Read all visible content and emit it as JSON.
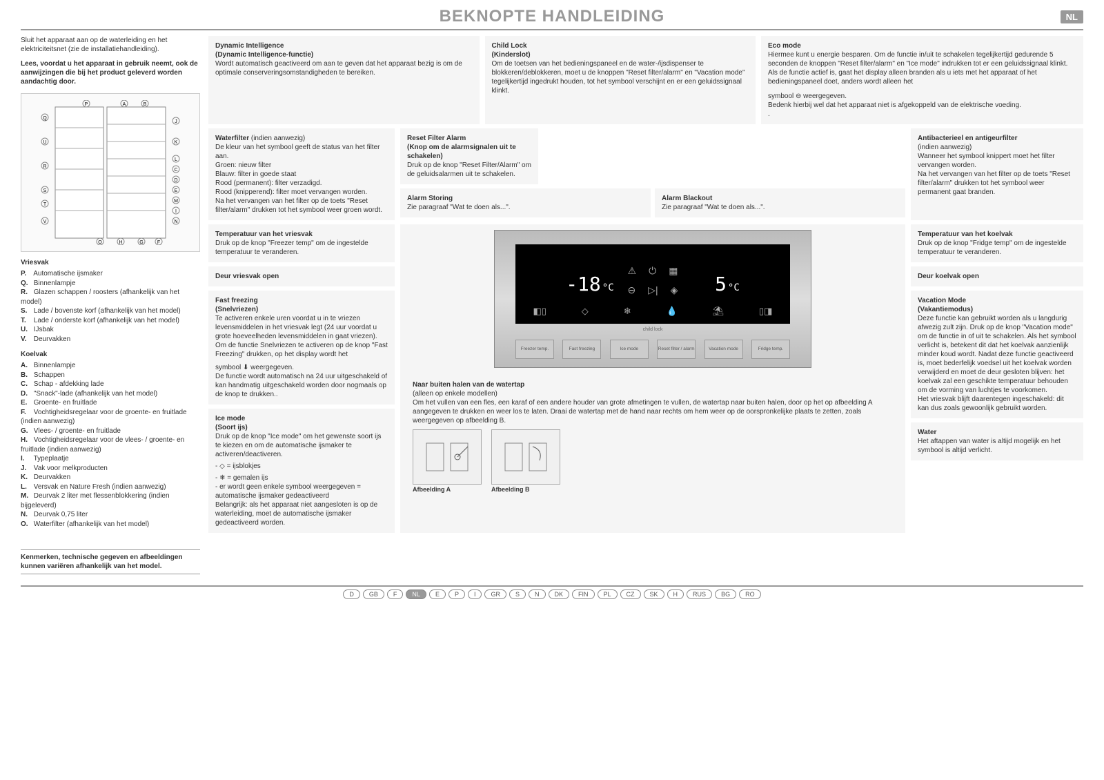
{
  "header": {
    "title": "BEKNOPTE HANDLEIDING",
    "lang": "NL"
  },
  "intro": {
    "p1": "Sluit het apparaat aan op de waterleiding en het elektriciteitsnet (zie de installatiehandleiding).",
    "p2": "Lees, voordat u het apparaat in gebruik neemt, ook de aanwijzingen die bij het product geleverd worden aandachtig door."
  },
  "legend": {
    "vriesvak_title": "Vriesvak",
    "vriesvak": [
      {
        "l": "P.",
        "t": "Automatische ijsmaker"
      },
      {
        "l": "Q.",
        "t": "Binnenlampje"
      },
      {
        "l": "R.",
        "t": "Glazen schappen / roosters (afhankelijk van het model)"
      },
      {
        "l": "S.",
        "t": "Lade / bovenste korf (afhankelijk van het model)"
      },
      {
        "l": "T.",
        "t": "Lade / onderste korf (afhankelijk van het model)"
      },
      {
        "l": "U.",
        "t": "IJsbak"
      },
      {
        "l": "V.",
        "t": "Deurvakken"
      }
    ],
    "koelvak_title": "Koelvak",
    "koelvak": [
      {
        "l": "A.",
        "t": "Binnenlampje"
      },
      {
        "l": "B.",
        "t": "Schappen"
      },
      {
        "l": "C.",
        "t": "Schap - afdekking lade"
      },
      {
        "l": "D.",
        "t": "\"Snack\"-lade (afhankelijk van het model)"
      },
      {
        "l": "E.",
        "t": "Groente- en fruitlade"
      },
      {
        "l": "F.",
        "t": "Vochtigheidsregelaar voor de groente- en fruitlade (indien aanwezig)"
      },
      {
        "l": "G.",
        "t": "Vlees- / groente- en fruitlade"
      },
      {
        "l": "H.",
        "t": "Vochtigheidsregelaar voor de vlees- / groente- en fruitlade (indien aanwezig)"
      },
      {
        "l": "I.",
        "t": "Typeplaatje"
      },
      {
        "l": "J.",
        "t": "Vak voor melkproducten"
      },
      {
        "l": "K.",
        "t": "Deurvakken"
      },
      {
        "l": "L.",
        "t": "Versvak en Nature Fresh (indien aanwezig)"
      },
      {
        "l": "M.",
        "t": "Deurvak 2 liter met flessenblokkering (indien bijgeleverd)"
      },
      {
        "l": "N.",
        "t": "Deurvak 0,75 liter"
      },
      {
        "l": "O.",
        "t": "Waterfilter (afhankelijk van het model)"
      }
    ],
    "bottom_note": "Kenmerken, technische gegeven en afbeeldingen kunnen variëren afhankelijk van het model."
  },
  "boxes": {
    "dynamic": {
      "t": "Dynamic Intelligence",
      "s": "(Dynamic Intelligence-functie)",
      "b": "Wordt automatisch geactiveerd om aan te geven dat het apparaat bezig is om de optimale conserveringsomstandigheden te bereiken."
    },
    "childlock": {
      "t": "Child Lock",
      "s": "(Kinderslot)",
      "b": "Om de toetsen van het bedieningspaneel en de water-/ijsdispenser te blokkeren/deblokkeren, moet u de knoppen \"Reset filter/alarm\" en \"Vacation mode\" tegelijkertijd ingedrukt houden, tot het symbool verschijnt en er een geluidssignaal klinkt."
    },
    "eco": {
      "t": "Eco mode",
      "b1": "Hiermee kunt u energie besparen. Om de functie in/uit te schakelen tegelijkertijd gedurende 5 seconden de knoppen \"Reset filter/alarm\" en \"Ice mode\" indrukken tot er een geluidssignaal klinkt.",
      "b2": "Als de functie actief is, gaat het display alleen branden als u iets met het apparaat of het bedieningspaneel doet, anders wordt alleen het",
      "b3": "symbool ⊖ weergegeven.",
      "b4": "Bedenk hierbij wel dat het apparaat niet is afgekoppeld van de elektrische voeding.",
      "dot": "."
    },
    "waterfilter": {
      "t": "Waterfilter",
      "note": " (indien aanwezig)",
      "b": "De kleur van het symbool geeft de status van het filter aan.\nGroen: nieuw filter\nBlauw: filter in goede staat\nRood (permanent): filter verzadigd.\nRood (knipperend): filter moet vervangen worden.\nNa het vervangen van het filter op de toets \"Reset filter/alarm\" drukken tot het symbool weer groen wordt."
    },
    "resetfilter": {
      "t": "Reset Filter Alarm",
      "s": "(Knop om de alarmsignalen uit te schakelen)",
      "b": "Druk op de knop \"Reset Filter/Alarm\" om de geluidsalarmen uit te schakelen."
    },
    "antibac": {
      "t": "Antibacterieel en antigeurfilter",
      "note": "(indien aanwezig)",
      "b": "Wanneer het symbool knippert moet het filter vervangen worden.\nNa het vervangen van het filter op de toets \"Reset filter/alarm\" drukken tot het symbool weer permanent gaat branden."
    },
    "alarmstoring": {
      "t": "Alarm Storing",
      "b": "Zie paragraaf \"Wat te doen als...\"."
    },
    "alarmblackout": {
      "t": "Alarm Blackout",
      "b": "Zie paragraaf \"Wat te doen als...\"."
    },
    "tempvries": {
      "t": "Temperatuur van het vriesvak",
      "b": "Druk op de knop \"Freezer temp\" om de ingestelde temperatuur te veranderen."
    },
    "deurvries": {
      "t": "Deur vriesvak open"
    },
    "fastfreeze": {
      "t": "Fast freezing",
      "s": "(Snelvriezen)",
      "b": "Te activeren enkele uren voordat u in te vriezen levensmiddelen in het vriesvak legt (24 uur voordat u grote hoeveelheden levensmiddelen in gaat vriezen). Om de functie Snelvriezen te activeren op de knop \"Fast Freezing\" drukken, op het display wordt het",
      "b2": "symbool ⬇ weergegeven.",
      "b3": "De functie wordt automatisch na 24 uur uitgeschakeld of kan handmatig uitgeschakeld worden door nogmaals op de knop te drukken.."
    },
    "icemode": {
      "t": "Ice mode",
      "s": "(Soort ijs)",
      "b": "Druk op de knop \"Ice mode\" om het gewenste soort ijs te kiezen en om de automatische ijsmaker te activeren/deactiveren.",
      "i1": "- ◇ = ijsblokjes",
      "i2": "- ❄ = gemalen ijs",
      "b2": "- er wordt geen enkele symbool weergegeven = automatische ijsmaker gedeactiveerd",
      "b3": "Belangrijk: als het apparaat niet aangesloten is op de waterleiding, moet de automatische ijsmaker gedeactiveerd worden."
    },
    "tempkoel": {
      "t": "Temperatuur van het koelvak",
      "b": "Druk op de knop \"Fridge temp\" om de ingestelde temperatuur te veranderen."
    },
    "deurkoel": {
      "t": "Deur koelvak open"
    },
    "vacation": {
      "t": "Vacation Mode",
      "s": "(Vakantiemodus)",
      "b": "Deze functie kan gebruikt worden als u langdurig afwezig zult zijn. Druk op de knop \"Vacation mode\" om de functie in of uit te schakelen. Als het symbool verlicht is, betekent dit dat het koelvak aanzienlijk minder koud wordt. Nadat deze functie geactiveerd is, moet bederfelijk voedsel uit het koelvak worden verwijderd en moet de deur gesloten blijven: het koelvak zal een geschikte temperatuur behouden om de vorming van luchtjes te voorkomen.\nHet vriesvak blijft daarentegen ingeschakeld: dit kan dus zoals gewoonlijk gebruikt worden."
    },
    "water": {
      "t": "Water",
      "b": "Het aftappen van water is altijd mogelijk en het symbool is altijd verlicht."
    },
    "watertap": {
      "t": "Naar buiten halen van de watertap",
      "note": "(alleen op enkele modellen)",
      "b": "Om het vullen van een fles, een karaf of een andere houder van grote afmetingen te vullen, de watertap naar buiten halen, door op het op afbeelding A aangegeven te drukken en weer los te laten. Draai de watertap met de hand naar rechts om hem weer op de oorspronkelijke plaats te zetten, zoals weergegeven op afbeelding B.",
      "img_a": "Afbeelding A",
      "img_b": "Afbeelding B"
    }
  },
  "panel": {
    "freezer_temp": "-18",
    "freezer_unit": "°C",
    "fridge_temp": "5",
    "fridge_unit": "°C",
    "child_lock_label": "child lock",
    "buttons": [
      "Freezer temp.",
      "Fast freezing",
      "Ice mode",
      "Reset filter / alarm",
      "Vacation mode",
      "Fridge temp."
    ]
  },
  "footer": {
    "langs": [
      "D",
      "GB",
      "F",
      "NL",
      "E",
      "P",
      "I",
      "GR",
      "S",
      "N",
      "DK",
      "FIN",
      "PL",
      "CZ",
      "SK",
      "H",
      "RUS",
      "BG",
      "RO"
    ],
    "active": "NL"
  }
}
